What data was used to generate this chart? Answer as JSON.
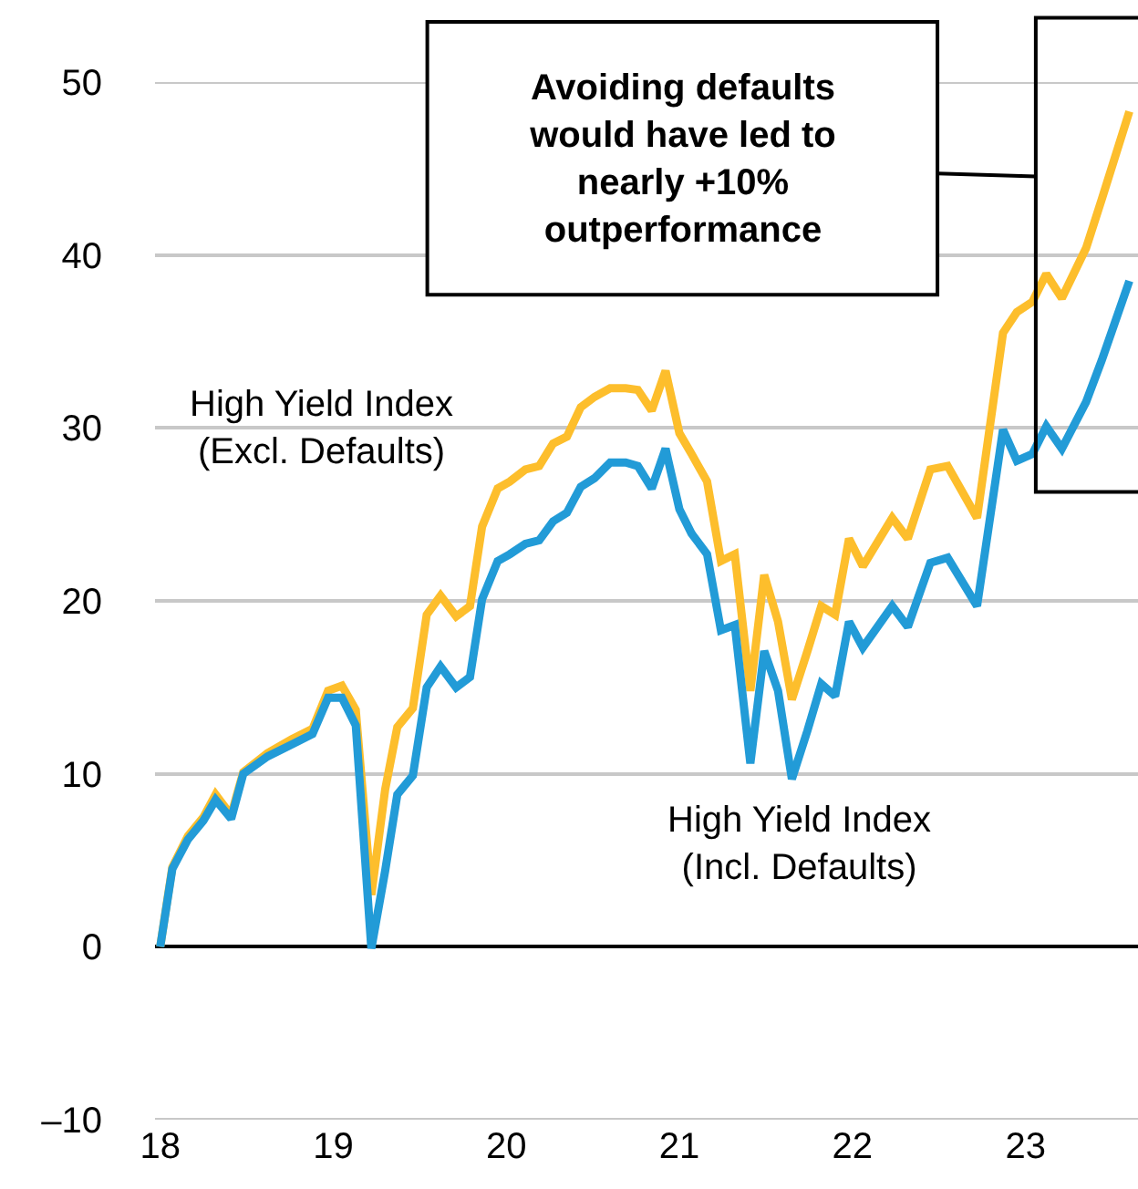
{
  "chart_data": {
    "type": "line",
    "annotations": [
      "Avoiding defaults\nwould have led to\nnearly +10%\noutperformance"
    ],
    "xlim": [
      17.97,
      23.65
    ],
    "xticks": [
      18,
      19,
      20,
      21,
      22,
      23
    ],
    "ylim": [
      -10,
      50
    ],
    "yticks": [
      {
        "value": -10,
        "label": "–10"
      },
      0,
      10,
      20,
      30,
      40,
      50
    ],
    "grid": "y",
    "legend": false,
    "line_style": "solid",
    "marker": "none",
    "series": [
      {
        "name": "High Yield Index\n(Excl. Defaults)",
        "color": "#fdbe2c",
        "x": [
          18.0,
          18.07,
          18.16,
          18.25,
          18.32,
          18.41,
          18.48,
          18.62,
          18.76,
          18.88,
          18.97,
          19.05,
          19.13,
          19.22,
          19.3,
          19.37,
          19.46,
          19.54,
          19.62,
          19.71,
          19.79,
          19.86,
          19.95,
          20.02,
          20.11,
          20.19,
          20.27,
          20.35,
          20.43,
          20.51,
          20.6,
          20.69,
          20.76,
          20.84,
          20.92,
          21.0,
          21.07,
          21.16,
          21.24,
          21.32,
          21.41,
          21.49,
          21.57,
          21.65,
          21.74,
          21.82,
          21.9,
          21.98,
          22.06,
          22.23,
          22.32,
          22.45,
          22.55,
          22.72,
          22.87,
          22.95,
          23.04,
          23.12,
          23.21,
          23.35,
          23.44,
          23.6
        ],
        "values": [
          0,
          4.6,
          6.4,
          7.5,
          8.8,
          7.6,
          10.1,
          11.2,
          12.0,
          12.6,
          14.8,
          15.1,
          13.7,
          3.0,
          9.1,
          12.7,
          13.8,
          19.2,
          20.3,
          19.1,
          19.7,
          24.3,
          26.5,
          26.9,
          27.6,
          27.8,
          29.1,
          29.5,
          31.2,
          31.8,
          32.3,
          32.3,
          32.2,
          31.0,
          33.3,
          29.7,
          28.5,
          26.9,
          22.3,
          22.7,
          14.8,
          21.5,
          18.8,
          14.3,
          17.1,
          19.7,
          19.2,
          23.6,
          22.0,
          24.8,
          23.6,
          27.6,
          27.8,
          24.8,
          35.5,
          36.7,
          37.3,
          38.9,
          37.5,
          40.4,
          43.2,
          48.3
        ]
      },
      {
        "name": "High Yield Index\n(Incl. Defaults)",
        "color": "#229bd7",
        "x": [
          18.0,
          18.07,
          18.16,
          18.25,
          18.32,
          18.41,
          18.48,
          18.62,
          18.76,
          18.88,
          18.97,
          19.05,
          19.13,
          19.22,
          19.3,
          19.37,
          19.46,
          19.54,
          19.62,
          19.71,
          19.79,
          19.86,
          19.95,
          20.02,
          20.11,
          20.19,
          20.27,
          20.35,
          20.43,
          20.51,
          20.6,
          20.69,
          20.76,
          20.84,
          20.92,
          21.0,
          21.07,
          21.16,
          21.24,
          21.32,
          21.41,
          21.49,
          21.57,
          21.65,
          21.74,
          21.82,
          21.9,
          21.98,
          22.06,
          22.23,
          22.32,
          22.45,
          22.55,
          22.72,
          22.87,
          22.95,
          23.04,
          23.12,
          23.21,
          23.35,
          23.44,
          23.6
        ],
        "values": [
          0,
          4.5,
          6.2,
          7.3,
          8.5,
          7.4,
          10.0,
          11.0,
          11.7,
          12.3,
          14.4,
          14.4,
          12.8,
          -0.1,
          4.4,
          8.8,
          9.9,
          15.0,
          16.2,
          15.0,
          15.6,
          20.1,
          22.3,
          22.7,
          23.3,
          23.5,
          24.6,
          25.1,
          26.6,
          27.1,
          28.0,
          28.0,
          27.8,
          26.5,
          28.8,
          25.3,
          23.9,
          22.7,
          18.3,
          18.6,
          10.6,
          17.1,
          14.8,
          9.7,
          12.5,
          15.2,
          14.5,
          18.8,
          17.3,
          19.7,
          18.5,
          22.2,
          22.5,
          19.7,
          29.9,
          28.1,
          28.5,
          30.1,
          28.8,
          31.5,
          33.9,
          38.5
        ]
      }
    ]
  }
}
